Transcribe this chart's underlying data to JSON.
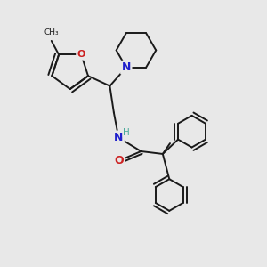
{
  "bg_color": "#e8e8e8",
  "bond_color": "#1a1a1a",
  "N_color": "#2020cc",
  "O_color": "#cc2020",
  "H_color": "#4aaa9a",
  "lw": 1.4,
  "figsize": [
    3.0,
    3.0
  ],
  "dpi": 100,
  "xlim": [
    0,
    10
  ],
  "ylim": [
    0,
    10
  ]
}
